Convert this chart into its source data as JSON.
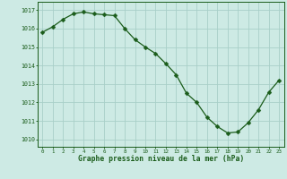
{
  "x": [
    0,
    1,
    2,
    3,
    4,
    5,
    6,
    7,
    8,
    9,
    10,
    11,
    12,
    13,
    14,
    15,
    16,
    17,
    18,
    19,
    20,
    21,
    22,
    23
  ],
  "y": [
    1015.8,
    1016.1,
    1016.5,
    1016.8,
    1016.9,
    1016.8,
    1016.75,
    1016.7,
    1016.0,
    1015.4,
    1015.0,
    1014.65,
    1014.1,
    1013.5,
    1012.5,
    1012.0,
    1011.2,
    1010.7,
    1010.35,
    1010.4,
    1010.9,
    1011.6,
    1012.55,
    1013.2
  ],
  "line_color": "#1a5c1a",
  "marker_color": "#1a5c1a",
  "bg_color": "#cdeae4",
  "grid_color": "#a8cfc8",
  "xlabel": "Graphe pression niveau de la mer (hPa)",
  "xlabel_color": "#1a5c1a",
  "tick_color": "#1a5c1a",
  "ytick_labels": [
    1010,
    1011,
    1012,
    1013,
    1014,
    1015,
    1016,
    1017
  ],
  "xtick_labels": [
    "0",
    "1",
    "2",
    "3",
    "4",
    "5",
    "6",
    "7",
    "8",
    "9",
    "10",
    "11",
    "12",
    "13",
    "14",
    "15",
    "16",
    "17",
    "18",
    "19",
    "20",
    "21",
    "22",
    "23"
  ],
  "ylim": [
    1009.6,
    1017.45
  ],
  "xlim": [
    -0.5,
    23.5
  ]
}
